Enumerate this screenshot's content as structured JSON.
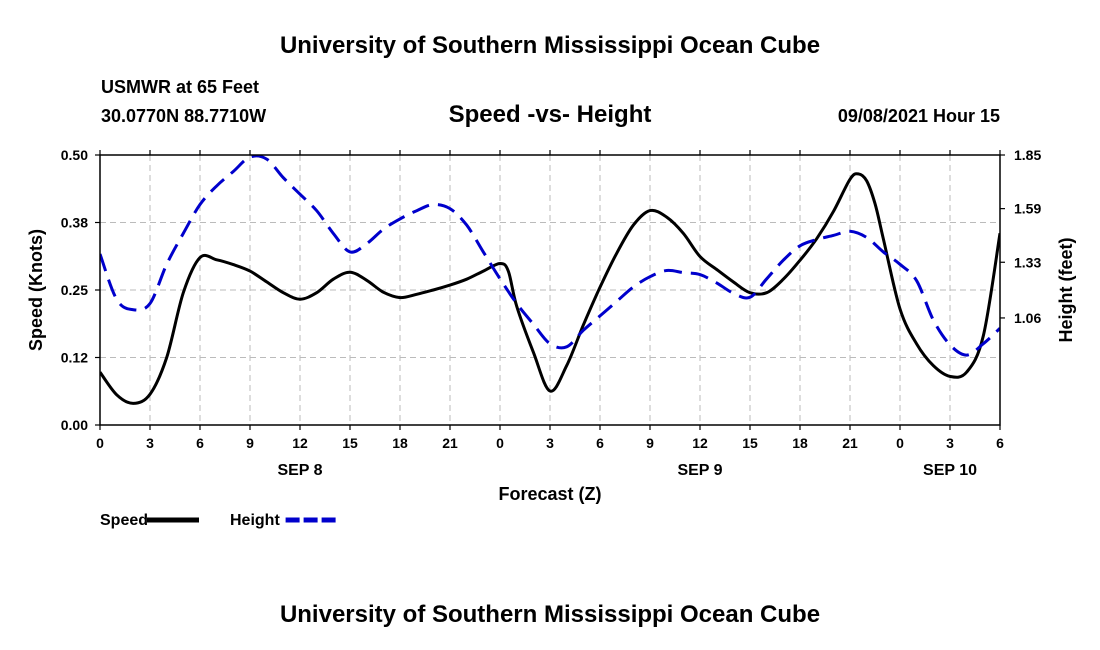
{
  "header": {
    "org_title": "University of Southern Mississippi Ocean Cube",
    "station": "USMWR at 65 Feet",
    "coords": "30.0770N  88.7710W",
    "chart_title": "Speed -vs- Height",
    "timestamp": "09/08/2021 Hour 15"
  },
  "footer": {
    "org_title": "University of Southern Mississippi Ocean Cube"
  },
  "chart_data": {
    "type": "line",
    "title": "Speed -vs- Height",
    "xlabel": "Forecast (Z)",
    "ylabel": "Speed (Knots)",
    "y2label": "Height (feet)",
    "x_range_hours": [
      0,
      54
    ],
    "x_ticks": [
      {
        "hour": 0,
        "label": "0"
      },
      {
        "hour": 3,
        "label": "3"
      },
      {
        "hour": 6,
        "label": "6"
      },
      {
        "hour": 9,
        "label": "9"
      },
      {
        "hour": 12,
        "label": "12"
      },
      {
        "hour": 15,
        "label": "15"
      },
      {
        "hour": 18,
        "label": "18"
      },
      {
        "hour": 21,
        "label": "21"
      },
      {
        "hour": 24,
        "label": "0"
      },
      {
        "hour": 27,
        "label": "3"
      },
      {
        "hour": 30,
        "label": "6"
      },
      {
        "hour": 33,
        "label": "9"
      },
      {
        "hour": 36,
        "label": "12"
      },
      {
        "hour": 39,
        "label": "15"
      },
      {
        "hour": 42,
        "label": "18"
      },
      {
        "hour": 45,
        "label": "21"
      },
      {
        "hour": 48,
        "label": "0"
      },
      {
        "hour": 51,
        "label": "3"
      },
      {
        "hour": 54,
        "label": "6"
      }
    ],
    "date_labels": [
      {
        "hour": 12,
        "label": "SEP 8"
      },
      {
        "hour": 36,
        "label": "SEP 9"
      },
      {
        "hour": 51,
        "label": "SEP 10"
      }
    ],
    "y_left": {
      "range": [
        0,
        0.5
      ],
      "ticks": [
        0,
        0.125,
        0.25,
        0.375,
        0.5
      ],
      "tick_labels": [
        "0.00",
        "0.12",
        "0.25",
        "0.38",
        "0.50"
      ]
    },
    "y_right": {
      "range": [
        0.541,
        1.85
      ],
      "ticks": [
        1.06,
        1.33,
        1.59,
        1.85
      ],
      "tick_labels": [
        "1.06",
        "1.33",
        "1.59",
        "1.85"
      ]
    },
    "grid": true,
    "legend": {
      "placement": "bottom-left"
    },
    "series": [
      {
        "name": "Speed",
        "axis": "left",
        "style": "solid",
        "color": "#000000",
        "points": [
          [
            0,
            0.098
          ],
          [
            1,
            0.056
          ],
          [
            2,
            0.04
          ],
          [
            3,
            0.057
          ],
          [
            4,
            0.125
          ],
          [
            5,
            0.245
          ],
          [
            6,
            0.31
          ],
          [
            7,
            0.306
          ],
          [
            8,
            0.297
          ],
          [
            9,
            0.285
          ],
          [
            10,
            0.265
          ],
          [
            11,
            0.245
          ],
          [
            12,
            0.233
          ],
          [
            13,
            0.245
          ],
          [
            14,
            0.27
          ],
          [
            15,
            0.283
          ],
          [
            16,
            0.268
          ],
          [
            17,
            0.246
          ],
          [
            18,
            0.236
          ],
          [
            19,
            0.242
          ],
          [
            20,
            0.25
          ],
          [
            21,
            0.259
          ],
          [
            22,
            0.27
          ],
          [
            23,
            0.285
          ],
          [
            24,
            0.299
          ],
          [
            24.5,
            0.285
          ],
          [
            25,
            0.22
          ],
          [
            26,
            0.135
          ],
          [
            27,
            0.063
          ],
          [
            28,
            0.11
          ],
          [
            29,
            0.185
          ],
          [
            30,
            0.255
          ],
          [
            31,
            0.318
          ],
          [
            32,
            0.37
          ],
          [
            33,
            0.397
          ],
          [
            34,
            0.385
          ],
          [
            35,
            0.355
          ],
          [
            36,
            0.312
          ],
          [
            37,
            0.288
          ],
          [
            38,
            0.265
          ],
          [
            39,
            0.245
          ],
          [
            40,
            0.245
          ],
          [
            41,
            0.27
          ],
          [
            42,
            0.305
          ],
          [
            43,
            0.345
          ],
          [
            44,
            0.395
          ],
          [
            45,
            0.455
          ],
          [
            45.5,
            0.465
          ],
          [
            46,
            0.452
          ],
          [
            46.5,
            0.41
          ],
          [
            47,
            0.345
          ],
          [
            48,
            0.215
          ],
          [
            49,
            0.15
          ],
          [
            50,
            0.11
          ],
          [
            51,
            0.09
          ],
          [
            52,
            0.098
          ],
          [
            53,
            0.165
          ],
          [
            54,
            0.355
          ]
        ]
      },
      {
        "name": "Height",
        "axis": "right",
        "style": "dashed",
        "color": "#0000cc",
        "points": [
          [
            0,
            1.37
          ],
          [
            1,
            1.15
          ],
          [
            2,
            1.1
          ],
          [
            3,
            1.13
          ],
          [
            4,
            1.32
          ],
          [
            5,
            1.47
          ],
          [
            6,
            1.61
          ],
          [
            7,
            1.7
          ],
          [
            8,
            1.77
          ],
          [
            9,
            1.84
          ],
          [
            10,
            1.83
          ],
          [
            11,
            1.74
          ],
          [
            12,
            1.66
          ],
          [
            13,
            1.58
          ],
          [
            14,
            1.47
          ],
          [
            15,
            1.38
          ],
          [
            16,
            1.42
          ],
          [
            17,
            1.49
          ],
          [
            18,
            1.54
          ],
          [
            19,
            1.58
          ],
          [
            20,
            1.61
          ],
          [
            21,
            1.59
          ],
          [
            22,
            1.51
          ],
          [
            23,
            1.38
          ],
          [
            24,
            1.25
          ],
          [
            25,
            1.13
          ],
          [
            26,
            1.03
          ],
          [
            27,
            0.935
          ],
          [
            28,
            0.92
          ],
          [
            29,
            1.0
          ],
          [
            30,
            1.07
          ],
          [
            31,
            1.14
          ],
          [
            32,
            1.21
          ],
          [
            33,
            1.26
          ],
          [
            34,
            1.29
          ],
          [
            35,
            1.28
          ],
          [
            36,
            1.27
          ],
          [
            37,
            1.23
          ],
          [
            38,
            1.18
          ],
          [
            39,
            1.16
          ],
          [
            40,
            1.25
          ],
          [
            41,
            1.34
          ],
          [
            42,
            1.41
          ],
          [
            43,
            1.44
          ],
          [
            44,
            1.46
          ],
          [
            45,
            1.48
          ],
          [
            46,
            1.45
          ],
          [
            47,
            1.38
          ],
          [
            48,
            1.32
          ],
          [
            49,
            1.24
          ],
          [
            50,
            1.05
          ],
          [
            51,
            0.93
          ],
          [
            52,
            0.88
          ],
          [
            53,
            0.935
          ],
          [
            54,
            1.01
          ]
        ]
      }
    ]
  }
}
